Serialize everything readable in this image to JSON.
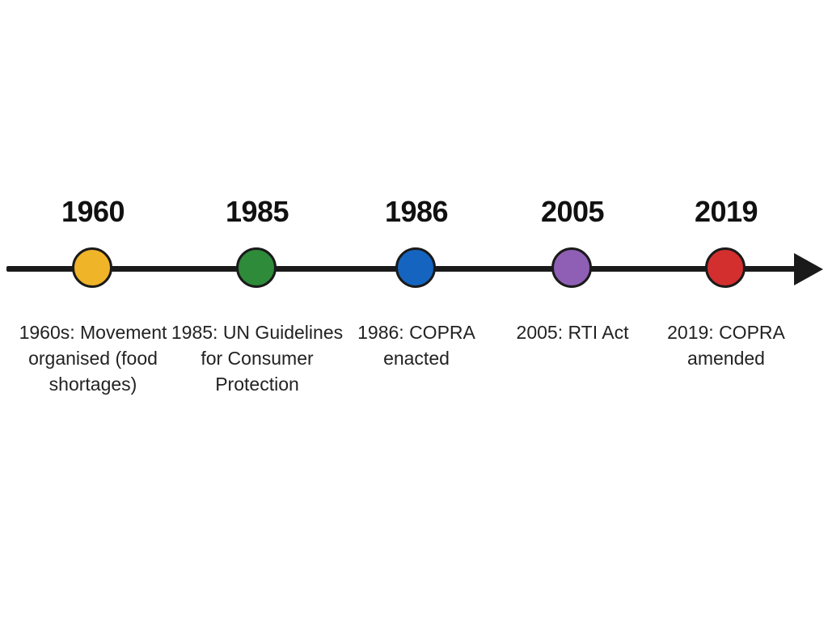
{
  "timeline": {
    "events": [
      {
        "year": "1960",
        "description": "1960s: Movement organised (food shortages)",
        "color": "#f0b429"
      },
      {
        "year": "1985",
        "description": "1985: UN Guidelines for Consumer Protection",
        "color": "#2e8b3a"
      },
      {
        "year": "1986",
        "description": "1986: COPRA enacted",
        "color": "#1565c0"
      },
      {
        "year": "2005",
        "description": "2005: RTI Act",
        "color": "#8e5fb5"
      },
      {
        "year": "2019",
        "description": "2019: COPRA amended",
        "color": "#d32f2f"
      }
    ]
  }
}
